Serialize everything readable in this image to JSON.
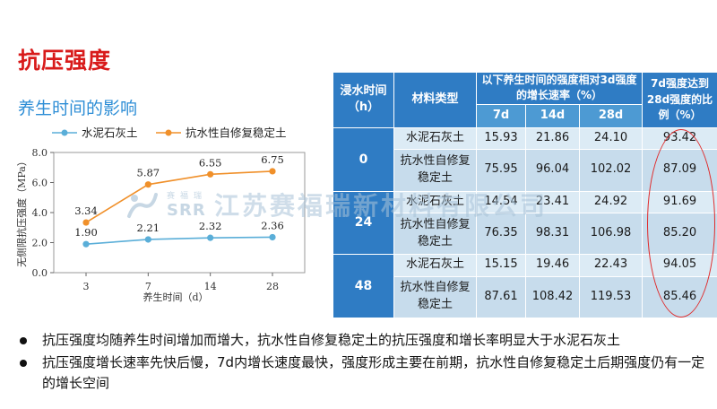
{
  "slide": {
    "title": "抗压强度",
    "subtitle": "养生时间的影响"
  },
  "chart_data": {
    "type": "line",
    "x": [
      3,
      7,
      14,
      28
    ],
    "categories": [
      "3",
      "7",
      "14",
      "28"
    ],
    "xlabel": "养生时间（d）",
    "ylabel": "无侧限抗压强度（MPa）",
    "ylim": [
      0,
      8
    ],
    "yticks": [
      "0.0",
      "2.0",
      "4.0",
      "6.0",
      "8.0"
    ],
    "legend_placement": "top",
    "series": [
      {
        "name": "水泥石灰土",
        "color": "#5aaed8",
        "values": [
          1.9,
          2.21,
          2.32,
          2.36
        ],
        "labels": [
          "1.90",
          "2.21",
          "2.32",
          "2.36"
        ]
      },
      {
        "name": "抗水性自修复稳定土",
        "color": "#f0902a",
        "values": [
          3.34,
          5.87,
          6.55,
          6.75
        ],
        "labels": [
          "3.34",
          "5.87",
          "6.55",
          "6.75"
        ]
      }
    ]
  },
  "table": {
    "headers": {
      "time": "浸水时间（h）",
      "material": "材料类型",
      "rate_group": "以下养生时间的强度相对3d强度的增长速率（%）",
      "days": [
        "7d",
        "14d",
        "28d"
      ],
      "ratio": "7d强度达到28d强度的比例（%）"
    },
    "groups": [
      {
        "time": "0",
        "rows": [
          {
            "material": "水泥石灰土",
            "values": [
              "15.93",
              "21.86",
              "24.10"
            ],
            "ratio": "93.42"
          },
          {
            "material": "抗水性自修复稳定土",
            "values": [
              "75.95",
              "96.04",
              "102.02"
            ],
            "ratio": "87.09"
          }
        ]
      },
      {
        "time": "24",
        "rows": [
          {
            "material": "水泥石灰土",
            "values": [
              "14.54",
              "23.41",
              "24.92"
            ],
            "ratio": "91.69"
          },
          {
            "material": "抗水性自修复稳定土",
            "values": [
              "76.35",
              "98.31",
              "106.98"
            ],
            "ratio": "85.20"
          }
        ]
      },
      {
        "time": "48",
        "rows": [
          {
            "material": "水泥石灰土",
            "values": [
              "15.15",
              "19.46",
              "22.43"
            ],
            "ratio": "94.05"
          },
          {
            "material": "抗水性自修复稳定土",
            "values": [
              "87.61",
              "108.42",
              "119.53"
            ],
            "ratio": "85.46"
          }
        ]
      }
    ]
  },
  "watermark": {
    "small_cn": "赛福瑞",
    "logo_text": "SRR",
    "text": "江苏赛福瑞新材料有限公司",
    "color": "#9bb8cf"
  },
  "bullets": [
    "抗压强度均随养生时间增加而增大，抗水性自修复稳定土的抗压强度和增长率明显大于水泥石灰土",
    "抗压强度增长速率先快后慢，7d内增长速度最快，强度形成主要在前期，抗水性自修复稳定土后期强度仍有一定的增长空间"
  ],
  "colors": {
    "title": "#d81b1b",
    "subtitle": "#2e8ed6",
    "header_dark": "#2f7cc4",
    "header_light": "#4d9ad3",
    "row_light": "#dcebf5",
    "row_dark": "#c7dcec",
    "highlight_oval": "#e02a2a"
  }
}
